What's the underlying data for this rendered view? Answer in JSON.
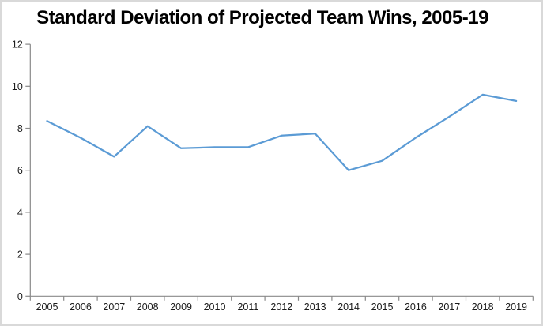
{
  "window": {
    "background_color": "#FFFFFF",
    "border_color": "#D9D9D9"
  },
  "chart_data": {
    "type": "line",
    "title": "Standard Deviation of Projected Team Wins, 2005-19",
    "categories": [
      "2005",
      "2006",
      "2007",
      "2008",
      "2009",
      "2010",
      "2011",
      "2012",
      "2013",
      "2014",
      "2015",
      "2016",
      "2017",
      "2018",
      "2019"
    ],
    "values": [
      8.35,
      7.55,
      6.65,
      8.1,
      7.05,
      7.1,
      7.1,
      7.65,
      7.75,
      6.0,
      6.45,
      7.55,
      8.55,
      9.6,
      9.3
    ],
    "xlabel": "",
    "ylabel": "",
    "ylim": [
      0,
      12
    ],
    "yticks": [
      0,
      2,
      4,
      6,
      8,
      10,
      12
    ],
    "grid": false,
    "legend": "none",
    "line_color": "#5B9BD5",
    "axis_color": "#898989",
    "tick_label_color": "#1A1A1A",
    "title_color": "#000000"
  }
}
